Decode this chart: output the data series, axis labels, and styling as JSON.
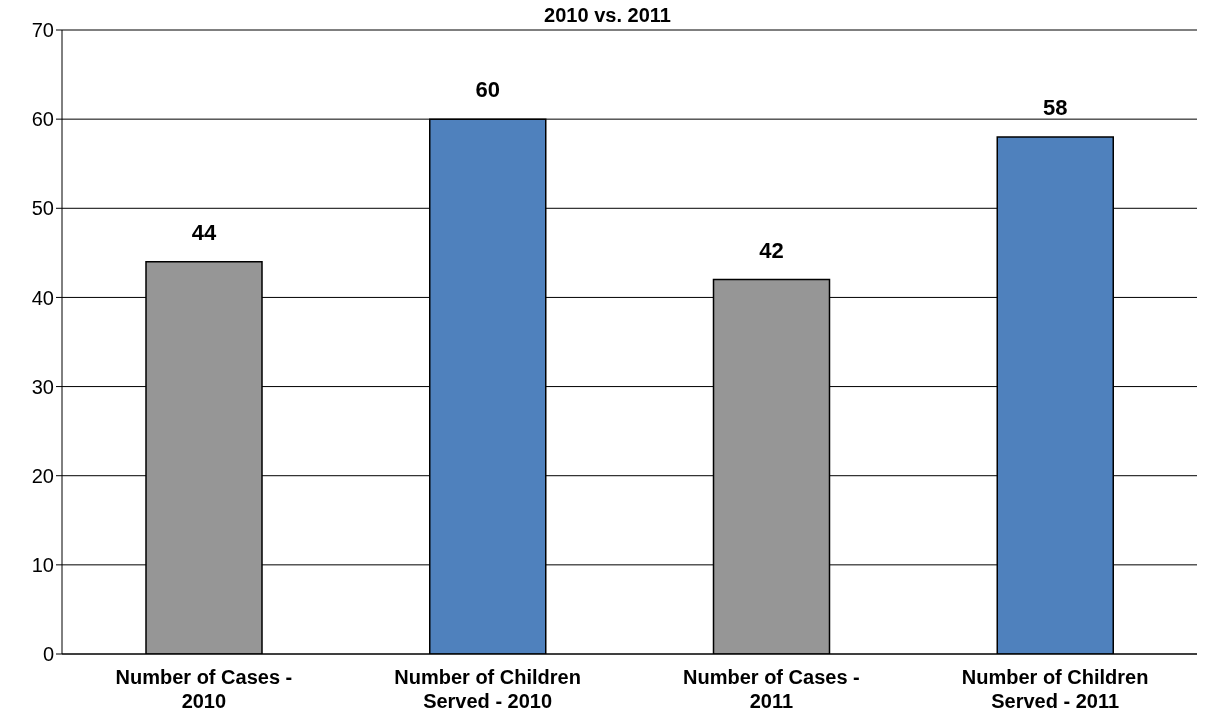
{
  "chart_data": {
    "type": "bar",
    "title": "2010 vs. 2011",
    "categories": [
      "Number of Cases - 2010",
      "Number of Children Served - 2010",
      "Number of Cases - 2011",
      "Number of Children Served - 2011"
    ],
    "values": [
      44,
      60,
      42,
      58
    ],
    "colors": [
      "#969696",
      "#4f81bd",
      "#969696",
      "#4f81bd"
    ],
    "ylim": [
      0,
      70
    ],
    "yticks": [
      0,
      10,
      20,
      30,
      40,
      50,
      60,
      70
    ],
    "grid": "y",
    "data_labels": true
  }
}
